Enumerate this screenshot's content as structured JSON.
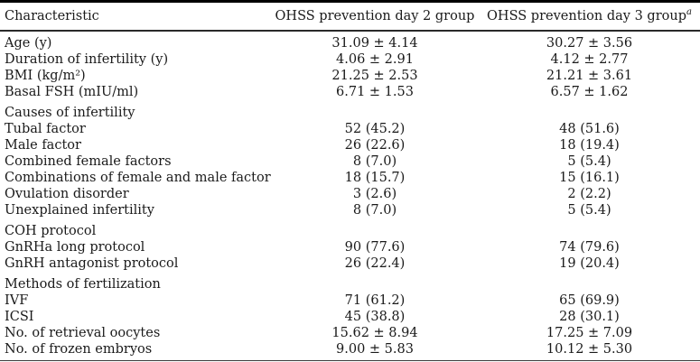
{
  "table": {
    "columns": {
      "characteristic": "Characteristic",
      "group_day2": "OHSS prevention day 2 group",
      "group_day3": "OHSS prevention day 3 group",
      "group_day3_footnote": "a"
    },
    "sections": [
      {
        "header": "",
        "rows": [
          {
            "label": "Age (y)",
            "day2": "31.09 ± 4.14",
            "day3": "30.27 ± 3.56"
          },
          {
            "label": "Duration of infertility (y)",
            "day2": "4.06 ± 2.91",
            "day3": "4.12 ± 2.77"
          },
          {
            "label": "BMI (kg/m²)",
            "day2": "21.25 ± 2.53",
            "day3": "21.21 ± 3.61"
          },
          {
            "label": "Basal FSH (mIU/ml)",
            "day2": "6.71 ± 1.53",
            "day3": "6.57 ± 1.62"
          }
        ]
      },
      {
        "header": "Causes of infertility",
        "rows": [
          {
            "label": "Tubal factor",
            "day2": "52 (45.2)",
            "day3": "48 (51.6)"
          },
          {
            "label": "Male factor",
            "day2": "26 (22.6)",
            "day3": "18 (19.4)"
          },
          {
            "label": "Combined female factors",
            "day2": "8 (7.0)",
            "day3": "5 (5.4)"
          },
          {
            "label": "Combinations of female and male factors",
            "day2": "18 (15.7)",
            "day3": "15 (16.1)"
          },
          {
            "label": "Ovulation disorder",
            "day2": "3 (2.6)",
            "day3": "2 (2.2)"
          },
          {
            "label": "Unexplained infertility",
            "day2": "8 (7.0)",
            "day3": "5 (5.4)"
          }
        ]
      },
      {
        "header": "COH protocol",
        "rows": [
          {
            "label": "GnRHa long protocol",
            "day2": "90 (77.6)",
            "day3": "74 (79.6)"
          },
          {
            "label": "GnRH antagonist protocol",
            "day2": "26 (22.4)",
            "day3": "19 (20.4)"
          }
        ]
      },
      {
        "header": "Methods of fertilization",
        "rows": [
          {
            "label": "IVF",
            "day2": "71 (61.2)",
            "day3": "65 (69.9)"
          },
          {
            "label": "ICSI",
            "day2": "45 (38.8)",
            "day3": "28 (30.1)"
          },
          {
            "label": "No. of retrieval oocytes",
            "day2": "15.62 ± 8.94",
            "day3": "17.25 ± 7.09"
          },
          {
            "label": "No. of frozen embryos",
            "day2": "9.00 ± 5.83",
            "day3": "10.12 ± 5.30"
          }
        ]
      }
    ]
  }
}
